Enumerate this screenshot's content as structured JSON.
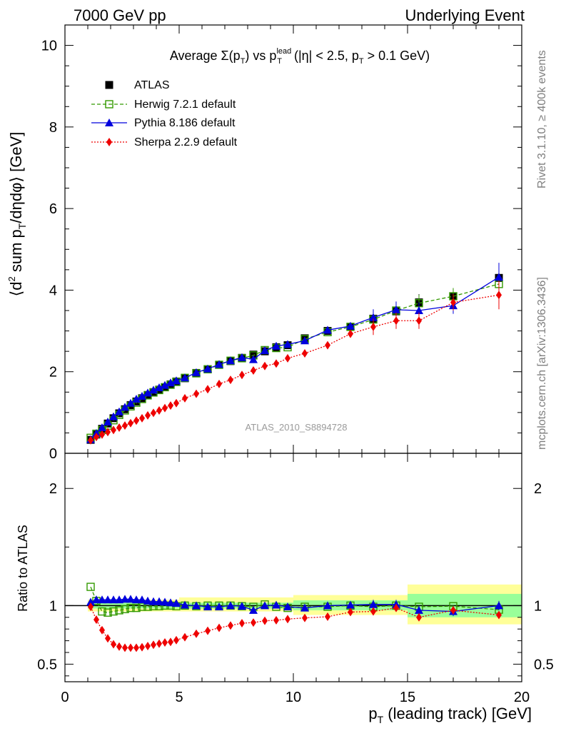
{
  "header": {
    "left": "7000 GeV pp",
    "right": "Underlying Event"
  },
  "side_labels": {
    "rivet": "Rivet 3.1.10, ≥ 400k events",
    "mcplots": "mcplots.cern.ch [arXiv:1306.3436]"
  },
  "watermark": "ATLAS_2010_S8894728",
  "title": {
    "prefix": "Average ",
    "sigma": "Σ",
    "pt_open": "(p",
    "sub_T": "T",
    "pt_close": ")",
    "vs": " vs p",
    "sup_lead": "lead",
    "cuts_1": " (|η| < 2.5, p",
    "cuts_2": " > 0.1 GeV)"
  },
  "axes": {
    "x_label_main": "p",
    "x_label_sub": "T",
    "x_label_rest": " (leading track) [GeV]",
    "y_label_a": "⟨d",
    "y_label_sup": "2",
    "y_label_b": " sum p",
    "y_label_sub": "T",
    "y_label_c": "/dηdφ⟩ [GeV]",
    "ratio_label": "Ratio to ATLAS"
  },
  "legend": [
    {
      "name": "ATLAS"
    },
    {
      "name": "Herwig 7.2.1 default"
    },
    {
      "name": "Pythia 8.186 default"
    },
    {
      "name": "Sherpa 2.2.9 default"
    }
  ],
  "chart_data": {
    "type": "scatter",
    "x_range": [
      0,
      20
    ],
    "x_ticks": [
      "0",
      "5",
      "10",
      "15",
      "20"
    ],
    "main_y_range": [
      0,
      10.5
    ],
    "main_y_ticks": [
      "0",
      "2",
      "4",
      "6",
      "8",
      "10"
    ],
    "ratio_y_range": [
      0.35,
      2.3
    ],
    "ratio_y_ticks_left": [
      "0.5",
      "1",
      "2"
    ],
    "ratio_y_ticks_right": [
      "0.5",
      "1",
      "2"
    ],
    "x": [
      1.125,
      1.375,
      1.625,
      1.875,
      2.125,
      2.375,
      2.625,
      2.875,
      3.125,
      3.375,
      3.625,
      3.875,
      4.125,
      4.375,
      4.625,
      4.875,
      5.25,
      5.75,
      6.25,
      6.75,
      7.25,
      7.75,
      8.25,
      8.75,
      9.25,
      9.75,
      10.5,
      11.5,
      12.5,
      13.5,
      14.5,
      15.5,
      17.0,
      19.0
    ],
    "series": [
      {
        "name": "ATLAS",
        "color": "#000000",
        "marker": "square-filled",
        "values": [
          0.33,
          0.46,
          0.6,
          0.73,
          0.86,
          0.98,
          1.08,
          1.18,
          1.27,
          1.35,
          1.43,
          1.5,
          1.56,
          1.62,
          1.69,
          1.76,
          1.84,
          1.97,
          2.06,
          2.17,
          2.26,
          2.34,
          2.42,
          2.5,
          2.6,
          2.65,
          2.82,
          3.0,
          3.1,
          3.3,
          3.48,
          3.7,
          3.85,
          4.3
        ],
        "ratio": [
          1.0,
          1.0,
          1.0,
          1.0,
          1.0,
          1.0,
          1.0,
          1.0,
          1.0,
          1.0,
          1.0,
          1.0,
          1.0,
          1.0,
          1.0,
          1.0,
          1.0,
          1.0,
          1.0,
          1.0,
          1.0,
          1.0,
          1.0,
          1.0,
          1.0,
          1.0,
          1.0,
          1.0,
          1.0,
          1.0,
          1.0,
          1.0,
          1.0,
          1.0
        ]
      },
      {
        "name": "Herwig 7.2.1 default",
        "color": "#339900",
        "marker": "square-open",
        "line": "dashed",
        "values": [
          0.38,
          0.48,
          0.57,
          0.68,
          0.81,
          0.94,
          1.05,
          1.15,
          1.24,
          1.33,
          1.42,
          1.49,
          1.55,
          1.62,
          1.68,
          1.75,
          1.85,
          1.96,
          2.06,
          2.17,
          2.27,
          2.33,
          2.4,
          2.53,
          2.58,
          2.6,
          2.8,
          2.97,
          3.1,
          3.28,
          3.5,
          3.68,
          3.85,
          4.15
        ],
        "ratio": [
          1.16,
          1.04,
          0.95,
          0.94,
          0.95,
          0.96,
          0.97,
          0.98,
          0.98,
          0.99,
          0.99,
          0.995,
          0.995,
          1.0,
          1.0,
          0.995,
          1.0,
          0.995,
          1.0,
          1.0,
          1.0,
          0.995,
          0.99,
          1.01,
          0.99,
          0.98,
          0.99,
          0.99,
          1.0,
          0.99,
          1.0,
          0.99,
          0.995,
          0.965
        ]
      },
      {
        "name": "Pythia 8.186 default",
        "color": "#0000dd",
        "marker": "triangle-filled",
        "line": "solid",
        "values": [
          0.34,
          0.49,
          0.63,
          0.77,
          0.9,
          1.02,
          1.13,
          1.23,
          1.33,
          1.4,
          1.48,
          1.55,
          1.61,
          1.67,
          1.73,
          1.78,
          1.85,
          1.98,
          2.07,
          2.18,
          2.27,
          2.35,
          2.3,
          2.52,
          2.63,
          2.67,
          2.76,
          3.02,
          3.12,
          3.33,
          3.52,
          3.5,
          3.62,
          4.32
        ],
        "ratio": [
          1.03,
          1.05,
          1.05,
          1.05,
          1.05,
          1.05,
          1.055,
          1.055,
          1.05,
          1.05,
          1.04,
          1.035,
          1.035,
          1.03,
          1.025,
          1.02,
          1.005,
          1.0,
          0.99,
          0.99,
          1.0,
          0.995,
          0.96,
          1.0,
          1.005,
          0.99,
          0.98,
          1.0,
          1.005,
          1.01,
          1.01,
          0.96,
          0.95,
          1.0
        ]
      },
      {
        "name": "Sherpa 2.2.9 default",
        "color": "#ee0000",
        "marker": "diamond-filled",
        "line": "dotted",
        "values": [
          0.32,
          0.4,
          0.46,
          0.52,
          0.57,
          0.63,
          0.68,
          0.74,
          0.8,
          0.86,
          0.93,
          0.99,
          1.05,
          1.11,
          1.17,
          1.23,
          1.35,
          1.46,
          1.57,
          1.7,
          1.8,
          1.92,
          2.03,
          2.14,
          2.2,
          2.33,
          2.45,
          2.65,
          2.93,
          3.1,
          3.25,
          3.25,
          3.7,
          3.88
        ],
        "ratio": [
          0.99,
          0.88,
          0.79,
          0.72,
          0.67,
          0.65,
          0.64,
          0.64,
          0.64,
          0.645,
          0.655,
          0.665,
          0.675,
          0.685,
          0.69,
          0.705,
          0.73,
          0.76,
          0.785,
          0.81,
          0.83,
          0.85,
          0.855,
          0.87,
          0.875,
          0.885,
          0.895,
          0.905,
          0.945,
          0.95,
          0.98,
          0.9,
          0.96,
          0.92
        ]
      }
    ],
    "ratio_bands": [
      {
        "x0": 1.0,
        "x1": 5.0,
        "stat": [
          0.975,
          1.025
        ],
        "total": [
          0.95,
          1.05
        ]
      },
      {
        "x0": 5.0,
        "x1": 10.0,
        "stat": [
          0.975,
          1.025
        ],
        "total": [
          0.95,
          1.07
        ]
      },
      {
        "x0": 10.0,
        "x1": 15.0,
        "stat": [
          0.96,
          1.045
        ],
        "total": [
          0.92,
          1.09
        ]
      },
      {
        "x0": 15.0,
        "x1": 20.0,
        "stat": [
          0.9,
          1.1
        ],
        "total": [
          0.84,
          1.18
        ]
      }
    ]
  }
}
